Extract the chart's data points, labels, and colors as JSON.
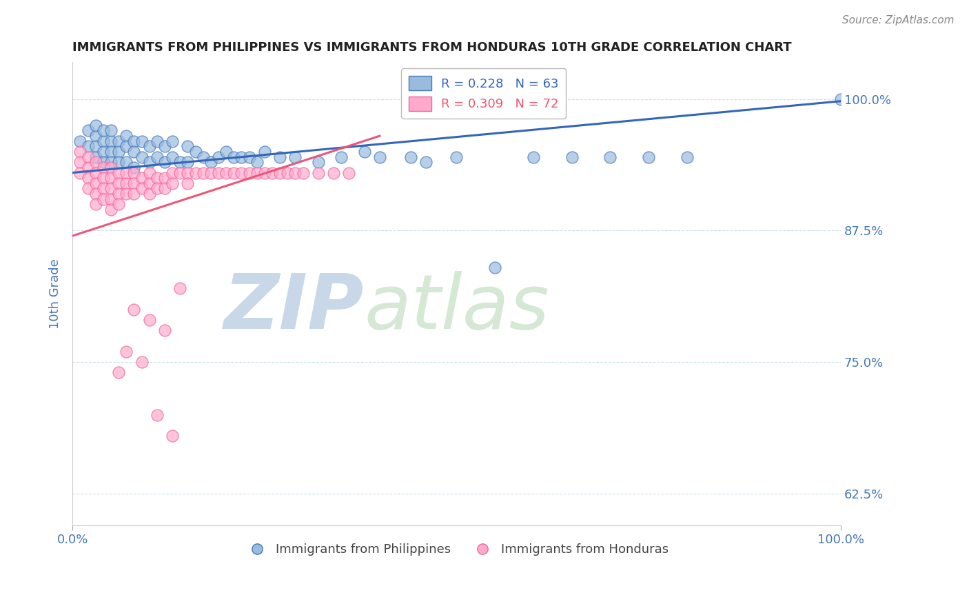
{
  "title": "IMMIGRANTS FROM PHILIPPINES VS IMMIGRANTS FROM HONDURAS 10TH GRADE CORRELATION CHART",
  "source_text": "Source: ZipAtlas.com",
  "ylabel": "10th Grade",
  "xlim": [
    0,
    1.0
  ],
  "ylim": [
    0.595,
    1.035
  ],
  "yticks": [
    0.625,
    0.75,
    0.875,
    1.0
  ],
  "ytick_labels": [
    "62.5%",
    "75.0%",
    "87.5%",
    "100.0%"
  ],
  "legend_blue_r": "R = 0.228",
  "legend_blue_n": "N = 63",
  "legend_pink_r": "R = 0.309",
  "legend_pink_n": "N = 72",
  "blue_color": "#99BBDD",
  "pink_color": "#FFAACC",
  "blue_edge_color": "#4477BB",
  "pink_edge_color": "#EE6699",
  "blue_line_color": "#3366BB",
  "pink_line_color": "#EE5577",
  "watermark_zip": "ZIP",
  "watermark_atlas": "atlas",
  "watermark_color": "#DDEEFF",
  "title_color": "#222222",
  "tick_label_color": "#4477BB",
  "blue_scatter_x": [
    0.01,
    0.02,
    0.02,
    0.03,
    0.03,
    0.03,
    0.03,
    0.04,
    0.04,
    0.04,
    0.04,
    0.05,
    0.05,
    0.05,
    0.05,
    0.06,
    0.06,
    0.06,
    0.07,
    0.07,
    0.07,
    0.08,
    0.08,
    0.08,
    0.09,
    0.09,
    0.1,
    0.1,
    0.11,
    0.11,
    0.12,
    0.12,
    0.13,
    0.13,
    0.14,
    0.15,
    0.15,
    0.16,
    0.17,
    0.18,
    0.19,
    0.2,
    0.21,
    0.22,
    0.23,
    0.24,
    0.25,
    0.27,
    0.29,
    0.32,
    0.35,
    0.38,
    0.4,
    0.44,
    0.46,
    0.5,
    0.55,
    0.6,
    0.65,
    0.7,
    0.75,
    0.8,
    1.0
  ],
  "blue_scatter_y": [
    0.96,
    0.97,
    0.955,
    0.965,
    0.975,
    0.955,
    0.945,
    0.96,
    0.97,
    0.95,
    0.94,
    0.96,
    0.97,
    0.95,
    0.94,
    0.96,
    0.95,
    0.94,
    0.965,
    0.955,
    0.94,
    0.96,
    0.95,
    0.935,
    0.96,
    0.945,
    0.955,
    0.94,
    0.96,
    0.945,
    0.955,
    0.94,
    0.96,
    0.945,
    0.94,
    0.955,
    0.94,
    0.95,
    0.945,
    0.94,
    0.945,
    0.95,
    0.945,
    0.945,
    0.945,
    0.94,
    0.95,
    0.945,
    0.945,
    0.94,
    0.945,
    0.95,
    0.945,
    0.945,
    0.94,
    0.945,
    0.84,
    0.945,
    0.945,
    0.945,
    0.945,
    0.945,
    1.0
  ],
  "pink_scatter_x": [
    0.01,
    0.01,
    0.01,
    0.02,
    0.02,
    0.02,
    0.02,
    0.03,
    0.03,
    0.03,
    0.03,
    0.03,
    0.04,
    0.04,
    0.04,
    0.04,
    0.05,
    0.05,
    0.05,
    0.05,
    0.05,
    0.06,
    0.06,
    0.06,
    0.06,
    0.07,
    0.07,
    0.07,
    0.08,
    0.08,
    0.08,
    0.09,
    0.09,
    0.1,
    0.1,
    0.1,
    0.11,
    0.11,
    0.12,
    0.12,
    0.13,
    0.13,
    0.14,
    0.15,
    0.15,
    0.16,
    0.17,
    0.18,
    0.19,
    0.2,
    0.21,
    0.22,
    0.23,
    0.24,
    0.25,
    0.26,
    0.27,
    0.28,
    0.29,
    0.3,
    0.32,
    0.34,
    0.36,
    0.14,
    0.08,
    0.1,
    0.12,
    0.07,
    0.09,
    0.06,
    0.11,
    0.13
  ],
  "pink_scatter_y": [
    0.95,
    0.94,
    0.93,
    0.945,
    0.935,
    0.925,
    0.915,
    0.94,
    0.93,
    0.92,
    0.91,
    0.9,
    0.935,
    0.925,
    0.915,
    0.905,
    0.935,
    0.925,
    0.915,
    0.905,
    0.895,
    0.93,
    0.92,
    0.91,
    0.9,
    0.93,
    0.92,
    0.91,
    0.93,
    0.92,
    0.91,
    0.925,
    0.915,
    0.93,
    0.92,
    0.91,
    0.925,
    0.915,
    0.925,
    0.915,
    0.93,
    0.92,
    0.93,
    0.93,
    0.92,
    0.93,
    0.93,
    0.93,
    0.93,
    0.93,
    0.93,
    0.93,
    0.93,
    0.93,
    0.93,
    0.93,
    0.93,
    0.93,
    0.93,
    0.93,
    0.93,
    0.93,
    0.93,
    0.82,
    0.8,
    0.79,
    0.78,
    0.76,
    0.75,
    0.74,
    0.7,
    0.68
  ],
  "blue_line_x0": 0.0,
  "blue_line_x1": 1.0,
  "blue_line_y0": 0.93,
  "blue_line_y1": 0.998,
  "pink_line_x0": 0.0,
  "pink_line_x1": 0.4,
  "pink_line_y0": 0.87,
  "pink_line_y1": 0.965
}
